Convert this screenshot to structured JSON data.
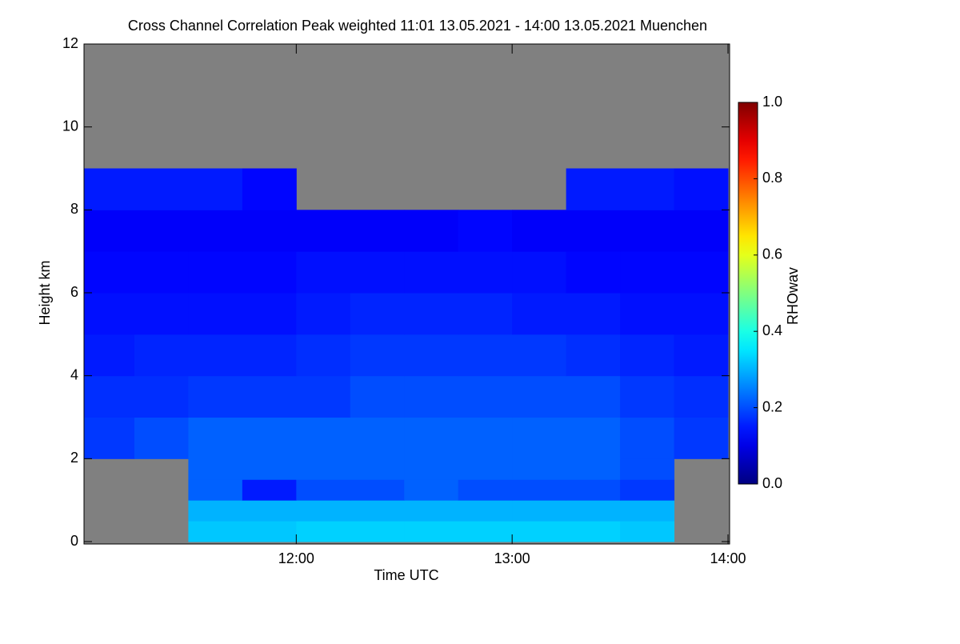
{
  "chart_data": {
    "type": "heatmap",
    "title": "Cross Channel Correlation Peak weighted   11:01 13.05.2021 - 14:00 13.05.2021 Muenchen",
    "xlabel": "Time UTC",
    "ylabel": "Height km",
    "colorbar_label": "RHOwav",
    "xlim": [
      11.0167,
      14.0
    ],
    "xticks": [
      {
        "value": 12,
        "label": "12:00"
      },
      {
        "value": 13,
        "label": "13:00"
      },
      {
        "value": 14,
        "label": "14:00"
      }
    ],
    "ylim": [
      0,
      12
    ],
    "yticks": [
      0,
      2,
      4,
      6,
      8,
      10,
      12
    ],
    "clim": [
      0,
      1
    ],
    "cticks": [
      {
        "value": 0,
        "label": "0.0"
      },
      {
        "value": 0.2,
        "label": "0.2"
      },
      {
        "value": 0.4,
        "label": "0.4"
      },
      {
        "value": 0.6,
        "label": "0.6"
      },
      {
        "value": 0.8,
        "label": "0.8"
      },
      {
        "value": 1,
        "label": "1.0"
      }
    ],
    "colormap": "jet",
    "missing_color": "#808080",
    "x_edges": [
      11.0167,
      11.25,
      11.5,
      11.75,
      12,
      12.25,
      12.5,
      12.75,
      13,
      13.25,
      13.5,
      13.75,
      14.0
    ],
    "y_edges": [
      0,
      0.5,
      1,
      1.5,
      2,
      3,
      4,
      5,
      6,
      7,
      8,
      9,
      10,
      12
    ],
    "z": [
      [
        null,
        null,
        0.32,
        0.32,
        0.33,
        0.33,
        0.33,
        0.33,
        0.33,
        0.33,
        0.32,
        null
      ],
      [
        null,
        null,
        0.3,
        0.3,
        0.3,
        0.3,
        0.3,
        0.3,
        0.3,
        0.3,
        0.3,
        null
      ],
      [
        null,
        null,
        0.22,
        0.15,
        0.2,
        0.2,
        0.22,
        0.2,
        0.2,
        0.2,
        0.18,
        null
      ],
      [
        null,
        null,
        0.22,
        0.22,
        0.22,
        0.22,
        0.22,
        0.22,
        0.22,
        0.22,
        0.2,
        null
      ],
      [
        0.18,
        0.2,
        0.22,
        0.22,
        0.22,
        0.22,
        0.22,
        0.22,
        0.22,
        0.22,
        0.2,
        0.18
      ],
      [
        0.17,
        0.17,
        0.18,
        0.18,
        0.18,
        0.2,
        0.2,
        0.2,
        0.2,
        0.2,
        0.18,
        0.17
      ],
      [
        0.15,
        0.16,
        0.16,
        0.16,
        0.17,
        0.18,
        0.18,
        0.18,
        0.18,
        0.17,
        0.16,
        0.15
      ],
      [
        0.14,
        0.14,
        0.14,
        0.14,
        0.15,
        0.16,
        0.16,
        0.16,
        0.15,
        0.15,
        0.14,
        0.14
      ],
      [
        0.13,
        0.13,
        0.13,
        0.13,
        0.14,
        0.14,
        0.14,
        0.14,
        0.14,
        0.13,
        0.13,
        0.13
      ],
      [
        0.12,
        0.12,
        0.12,
        0.12,
        0.12,
        0.12,
        0.12,
        0.13,
        0.12,
        0.12,
        0.12,
        0.12
      ],
      [
        0.15,
        0.15,
        0.15,
        0.13,
        null,
        null,
        null,
        null,
        null,
        0.15,
        0.15,
        0.14
      ],
      [
        null,
        null,
        null,
        null,
        null,
        null,
        null,
        null,
        null,
        null,
        null,
        null
      ],
      [
        null,
        null,
        null,
        null,
        null,
        null,
        null,
        null,
        null,
        null,
        null,
        null
      ]
    ]
  }
}
